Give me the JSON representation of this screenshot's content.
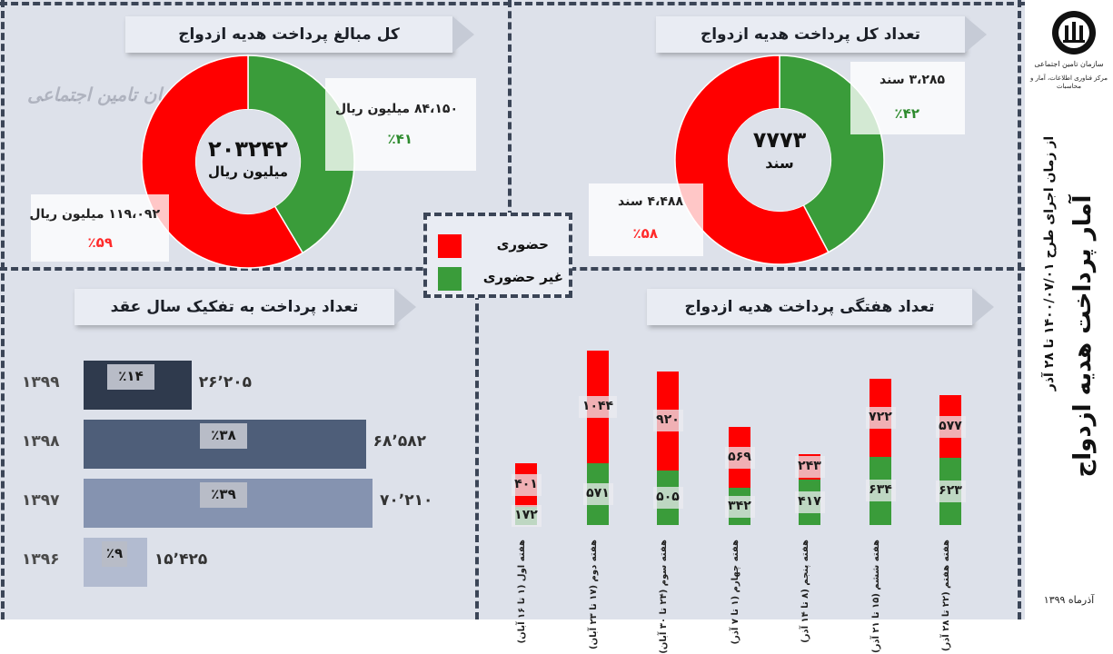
{
  "sidebar": {
    "org_name": "سازمان تامین اجتماعی",
    "dept_name": "مرکز فناوری اطلاعات، آمار و محاسبات",
    "main_title": "آمار پرداخت هدیه ازدواج",
    "subtitle": "از زمان اجرای طرح ۱۴۰۰/۰۷/۰۱ تا ۲۸ آذر",
    "date": "آذرماه ۱۳۹۹"
  },
  "colors": {
    "present": "#ff0000",
    "absent": "#3a9c3a",
    "bg": "#dde1ea",
    "dark": "#3b4557"
  },
  "legend": {
    "present_label": "حضوری",
    "absent_label": "غیر حضوری"
  },
  "panel_total_count": {
    "title": "تعداد کل پرداخت هدیه ازدواج",
    "center_value": "۷۷۷۳",
    "center_unit": "سند",
    "absent_value": "۳،۲۸۵ سند",
    "absent_pct": "٪۴۲",
    "present_value": "۴،۴۸۸ سند",
    "present_pct": "٪۵۸"
  },
  "panel_total_amount": {
    "title": "کل مبالغ پرداخت هدیه ازدواج",
    "watermark": "سازمان تامین اجتماعی",
    "center_value": "۲۰۳۲۴۲",
    "center_unit": "میلیون ریال",
    "absent_value": "۸۴،۱۵۰ میلیون ریال",
    "absent_pct": "٪۴۱",
    "present_value": "۱۱۹،۰۹۲ میلیون ریال",
    "present_pct": "٪۵۹"
  },
  "panel_by_year": {
    "title": "تعداد پرداخت به تفکیک سال عقد"
  },
  "panel_weekly": {
    "title": "تعداد هفتگی پرداخت هدیه ازدواج"
  },
  "chart_data": [
    {
      "type": "pie",
      "title": "تعداد کل پرداخت هدیه ازدواج",
      "categories": [
        "حضوری",
        "غیر حضوری"
      ],
      "values": [
        4488,
        3285
      ],
      "percents": [
        58,
        42
      ],
      "colors": [
        "#ff0000",
        "#3a9c3a"
      ]
    },
    {
      "type": "pie",
      "title": "کل مبالغ پرداخت هدیه ازدواج",
      "categories": [
        "حضوری",
        "غیر حضوری"
      ],
      "values": [
        119092,
        84150
      ],
      "percents": [
        59,
        41
      ],
      "colors": [
        "#ff0000",
        "#3a9c3a"
      ]
    },
    {
      "type": "bar",
      "orientation": "horizontal",
      "title": "تعداد پرداخت به تفکیک سال عقد",
      "categories": [
        "۱۳۹۹",
        "۱۳۹۸",
        "۱۳۹۷",
        "۱۳۹۶"
      ],
      "values": [
        26205,
        68582,
        70210,
        15425
      ],
      "value_labels": [
        "۲۶٬۲۰۵",
        "۶۸٬۵۸۲",
        "۷۰٬۲۱۰",
        "۱۵٬۴۲۵"
      ],
      "percent_labels": [
        "٪۱۴",
        "٪۳۸",
        "٪۳۹",
        "٪۹"
      ],
      "colors": [
        "#2f3a4d",
        "#4e5e79",
        "#8593b0",
        "#b2bbd0"
      ]
    },
    {
      "type": "bar",
      "stacked": true,
      "title": "تعداد هفتگی پرداخت هدیه ازدواج",
      "categories": [
        "هفته اول (۱ تا ۱۶ آبان)",
        "هفته دوم (۱۷ تا ۲۳ آبان)",
        "هفته سوم (۲۴ تا ۳۰ آبان)",
        "هفته چهارم (۱ تا ۷ آذر)",
        "هفته پنجم (۸ تا ۱۴ آذر)",
        "هفته ششم (۱۵ تا ۲۱ آذر)",
        "هفته هفتم (۲۲ تا ۲۸ آذر)"
      ],
      "series": [
        {
          "name": "غیر حضوری",
          "values": [
            172,
            571,
            505,
            342,
            417,
            634,
            623
          ],
          "labels": [
            "۱۷۲",
            "۵۷۱",
            "۵۰۵",
            "۳۴۲",
            "۴۱۷",
            "۶۳۴",
            "۶۲۳"
          ],
          "color": "#3a9c3a"
        },
        {
          "name": "حضوری",
          "values": [
            401,
            1044,
            920,
            569,
            243,
            722,
            577
          ],
          "labels": [
            "۴۰۱",
            "۱۰۴۴",
            "۹۲۰",
            "۵۶۹",
            "۲۴۳",
            "۷۲۲",
            "۵۷۷"
          ],
          "color": "#ff0000"
        }
      ]
    }
  ]
}
